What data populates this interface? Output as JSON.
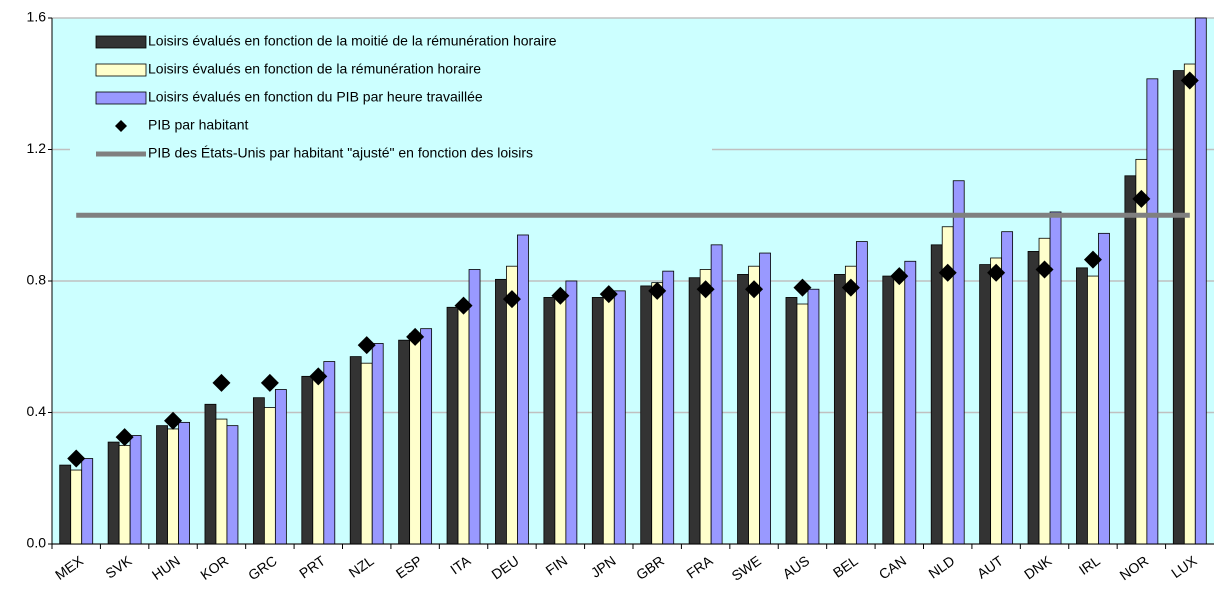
{
  "chart_data": {
    "type": "bar",
    "categories": [
      "MEX",
      "SVK",
      "HUN",
      "KOR",
      "GRC",
      "PRT",
      "NZL",
      "ESP",
      "ITA",
      "DEU",
      "FIN",
      "JPN",
      "GBR",
      "FRA",
      "SWE",
      "AUS",
      "BEL",
      "CAN",
      "NLD",
      "AUT",
      "DNK",
      "IRL",
      "NOR",
      "LUX"
    ],
    "series": [
      {
        "name": "Loisirs évalués en fonction de la moitié de la rémunération horaire",
        "type": "bar",
        "color": "#333333",
        "values": [
          0.24,
          0.31,
          0.36,
          0.425,
          0.445,
          0.51,
          0.57,
          0.62,
          0.72,
          0.805,
          0.75,
          0.75,
          0.785,
          0.81,
          0.82,
          0.75,
          0.82,
          0.815,
          0.91,
          0.85,
          0.89,
          0.84,
          1.12,
          1.44
        ]
      },
      {
        "name": "Loisirs évalués en fonction de la rémunération horaire",
        "type": "bar",
        "color": "#ffffcc",
        "values": [
          0.225,
          0.3,
          0.35,
          0.38,
          0.415,
          0.505,
          0.55,
          0.64,
          0.725,
          0.845,
          0.76,
          0.765,
          0.795,
          0.835,
          0.845,
          0.73,
          0.845,
          0.82,
          0.965,
          0.87,
          0.93,
          0.815,
          1.17,
          1.46
        ]
      },
      {
        "name": "Loisirs évalués en fonction du PIB par heure travaillée",
        "type": "bar",
        "color": "#9999ff",
        "values": [
          0.26,
          0.33,
          0.37,
          0.36,
          0.47,
          0.555,
          0.61,
          0.655,
          0.835,
          0.94,
          0.8,
          0.77,
          0.83,
          0.91,
          0.885,
          0.775,
          0.92,
          0.86,
          1.105,
          0.95,
          1.01,
          0.945,
          1.415,
          1.6
        ]
      },
      {
        "name": "PIB par habitant",
        "type": "marker",
        "color": "#000000",
        "values": [
          0.26,
          0.325,
          0.375,
          0.49,
          0.49,
          0.51,
          0.605,
          0.63,
          0.725,
          0.745,
          0.755,
          0.76,
          0.77,
          0.775,
          0.775,
          0.78,
          0.78,
          0.815,
          0.825,
          0.825,
          0.835,
          0.865,
          1.05,
          1.41
        ]
      },
      {
        "name": "PIB des États-Unis par habitant \"ajusté\" en fonction des loisirs",
        "type": "line",
        "color": "#808080",
        "values": [
          1,
          1,
          1,
          1,
          1,
          1,
          1,
          1,
          1,
          1,
          1,
          1,
          1,
          1,
          1,
          1,
          1,
          1,
          1,
          1,
          1,
          1,
          1,
          1
        ]
      }
    ],
    "ylim": [
      0,
      1.6
    ],
    "yticks": [
      {
        "value": 0,
        "label": "0.0"
      },
      0.4,
      0.8,
      1.2,
      1.6
    ],
    "grid": true,
    "legend": "top-left"
  }
}
